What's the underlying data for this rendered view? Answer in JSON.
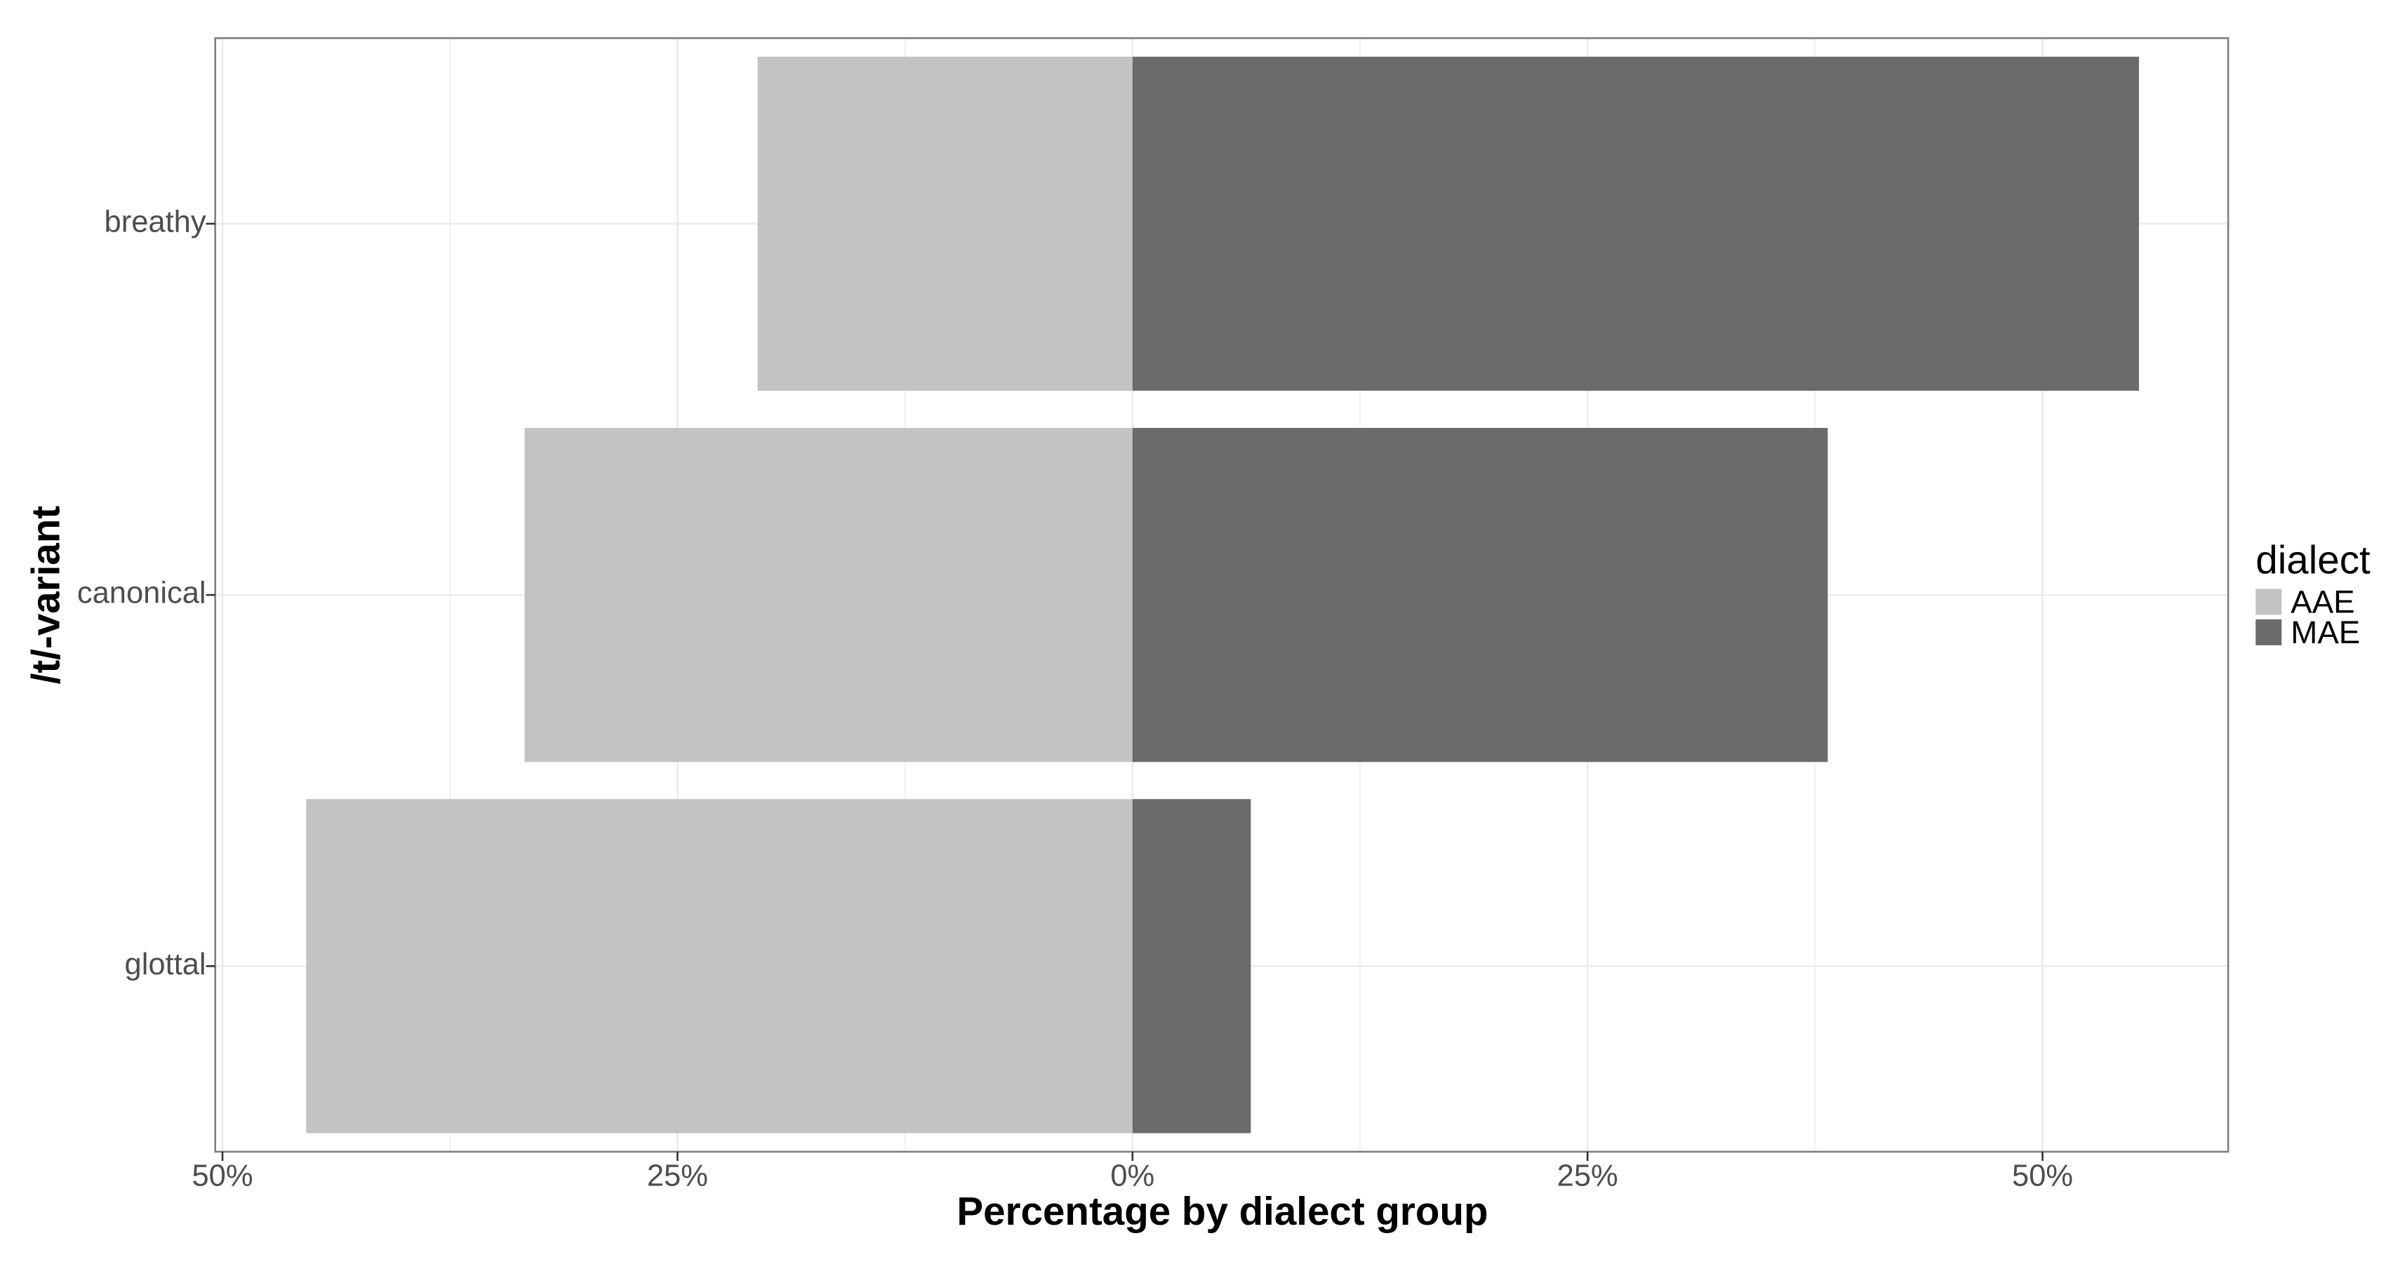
{
  "chart_data": {
    "type": "bar",
    "orientation": "horizontal",
    "stacked": true,
    "x_label": "Percentage by dialect group",
    "y_label": "/t/-variant",
    "categories": [
      "breathy",
      "canonical",
      "glottal"
    ],
    "series": [
      {
        "name": "AAE",
        "color": "#c3c3c3",
        "values": [
          -20.6,
          -33.4,
          -45.4
        ]
      },
      {
        "name": "MAE",
        "color": "#6b6b6b",
        "values": [
          55.3,
          38.2,
          6.5
        ]
      }
    ],
    "xlim": [
      -50.4,
      60.2
    ],
    "xticks": [
      {
        "value": -50,
        "label": "50%"
      },
      {
        "value": -25,
        "label": "25%"
      },
      {
        "value": 0,
        "label": "0%"
      },
      {
        "value": 25,
        "label": "25%"
      },
      {
        "value": 50,
        "label": "50%"
      }
    ],
    "xminor_ticks": [
      -37.5,
      -12.5,
      12.5,
      37.5
    ],
    "grid": true,
    "legend_title": "dialect",
    "legend": "right"
  }
}
